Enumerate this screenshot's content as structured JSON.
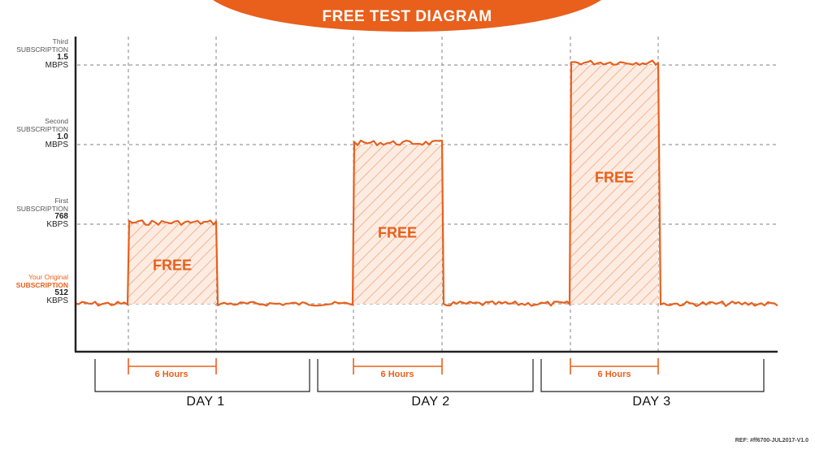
{
  "title": "FREE TEST DIAGRAM",
  "reference": "REF: #ff6700-JUL2017-V1.0",
  "colors": {
    "accent": "#e8601c",
    "grid": "#9a9a9a",
    "axis": "#222222",
    "hatch_bg": "#fde7da"
  },
  "levels": [
    {
      "line1": "Third",
      "line2": "SUBSCRIPTION",
      "value": "1.5",
      "unit": "MBPS"
    },
    {
      "line1": "Second",
      "line2": "SUBSCRIPTION",
      "value": "1.0",
      "unit": "MBPS"
    },
    {
      "line1": "First",
      "line2": "SUBSCRIPTION",
      "value": "768",
      "unit": "KBPS"
    },
    {
      "line1": "Your Original",
      "line2": "SUBSCRIPTION",
      "value": "512",
      "unit": "KBPS"
    }
  ],
  "free_label": "FREE",
  "duration_label": "6 Hours",
  "days": [
    "DAY 1",
    "DAY 2",
    "DAY 3"
  ]
}
